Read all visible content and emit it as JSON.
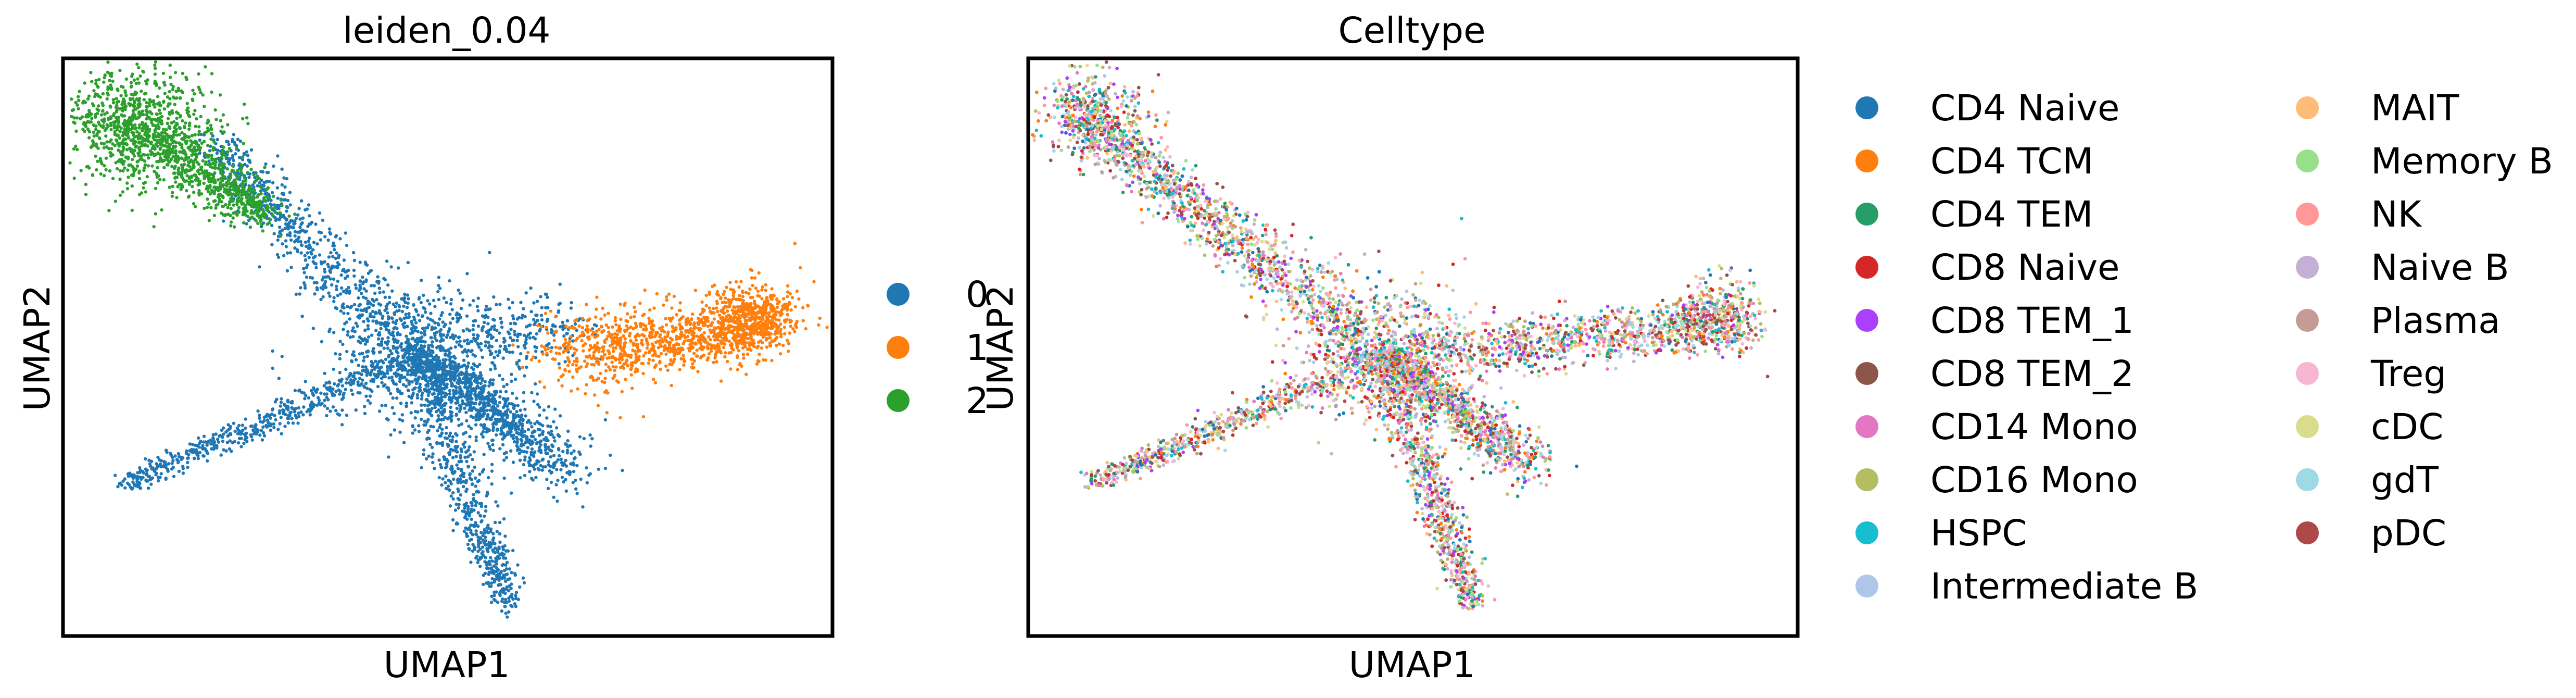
{
  "chart_data": [
    {
      "type": "scatter",
      "title": "leiden_0.04",
      "xlabel": "UMAP1",
      "ylabel": "UMAP2",
      "ticks": "none",
      "legend": {
        "placement": "right",
        "entries": [
          {
            "label": "0",
            "color": "#1f77b4"
          },
          {
            "label": "1",
            "color": "#ff7f0e"
          },
          {
            "label": "2",
            "color": "#2ca02c"
          }
        ]
      },
      "clusters": [
        {
          "name": "0",
          "color": "#1f77b4",
          "shape": [
            {
              "from": [
                6.6,
                2.2
              ],
              "to": [
                4.6,
                3.7
              ],
              "weight": 2.2,
              "spread": 0.25
            },
            {
              "from": [
                4.6,
                3.7
              ],
              "to": [
                1.9,
                6.5
              ],
              "weight": 1.6,
              "spread": 0.3
            },
            {
              "from": [
                4.6,
                3.7
              ],
              "to": [
                0.8,
                2.0
              ],
              "weight": 1.2,
              "spread": 0.16
            },
            {
              "from": [
                4.6,
                3.7
              ],
              "to": [
                5.8,
                0.4
              ],
              "weight": 1.4,
              "spread": 0.2
            },
            {
              "from": [
                4.6,
                3.7
              ],
              "to": [
                6.6,
                4.1
              ],
              "weight": 0.7,
              "spread": 0.45
            }
          ],
          "hubs": [
            {
              "at": [
                4.6,
                3.7
              ],
              "radius": 0.6,
              "weight": 1.3
            }
          ]
        },
        {
          "name": "1",
          "color": "#ff7f0e",
          "shape": [
            {
              "from": [
                6.4,
                3.7
              ],
              "to": [
                9.2,
                4.1
              ],
              "weight": 1.5,
              "spread": 0.35
            }
          ],
          "hubs": [
            {
              "at": [
                9.0,
                4.2
              ],
              "radius": 0.3,
              "weight": 0.6
            }
          ]
        },
        {
          "name": "2",
          "color": "#2ca02c",
          "shape": [
            {
              "from": [
                0.6,
                6.9
              ],
              "to": [
                2.6,
                5.6
              ],
              "weight": 1.2,
              "spread": 0.3
            }
          ],
          "hubs": [
            {
              "at": [
                1.0,
                6.7
              ],
              "radius": 0.5,
              "weight": 0.8
            }
          ]
        }
      ],
      "xlim": [
        0,
        10
      ],
      "ylim": [
        0,
        7.6
      ]
    },
    {
      "type": "scatter",
      "title": "Celltype",
      "xlabel": "UMAP1",
      "ylabel": "UMAP2",
      "ticks": "none",
      "legend": {
        "placement": "right",
        "columns": 2,
        "entries": [
          {
            "label": "CD4 Naive",
            "color": "#1f77b4"
          },
          {
            "label": "CD4 TCM",
            "color": "#ff7f0e"
          },
          {
            "label": "CD4 TEM",
            "color": "#279e68"
          },
          {
            "label": "CD8 Naive",
            "color": "#d62728"
          },
          {
            "label": "CD8 TEM_1",
            "color": "#aa40fc"
          },
          {
            "label": "CD8 TEM_2",
            "color": "#8c564b"
          },
          {
            "label": "CD14 Mono",
            "color": "#e377c2"
          },
          {
            "label": "CD16 Mono",
            "color": "#b5bd61"
          },
          {
            "label": "HSPC",
            "color": "#17becf"
          },
          {
            "label": "Intermediate B",
            "color": "#aec7e8"
          },
          {
            "label": "MAIT",
            "color": "#ffbb78"
          },
          {
            "label": "Memory B",
            "color": "#98df8a"
          },
          {
            "label": "NK",
            "color": "#ff9896"
          },
          {
            "label": "Naive B",
            "color": "#c5b0d5"
          },
          {
            "label": "Plasma",
            "color": "#c49c94"
          },
          {
            "label": "Treg",
            "color": "#f7b6d2"
          },
          {
            "label": "cDC",
            "color": "#dbdb8d"
          },
          {
            "label": "gdT",
            "color": "#9edae5"
          },
          {
            "label": "pDC",
            "color": "#ad494a"
          }
        ]
      },
      "shape": [
        {
          "from": [
            6.6,
            2.2
          ],
          "to": [
            4.6,
            3.7
          ],
          "weight": 1.6,
          "spread": 0.22
        },
        {
          "from": [
            4.6,
            3.7
          ],
          "to": [
            0.6,
            6.9
          ],
          "weight": 2.0,
          "spread": 0.28
        },
        {
          "from": [
            4.6,
            3.7
          ],
          "to": [
            0.8,
            2.0
          ],
          "weight": 1.0,
          "spread": 0.15
        },
        {
          "from": [
            4.6,
            3.7
          ],
          "to": [
            5.8,
            0.4
          ],
          "weight": 1.2,
          "spread": 0.18
        },
        {
          "from": [
            4.6,
            3.7
          ],
          "to": [
            9.2,
            4.1
          ],
          "weight": 1.7,
          "spread": 0.3
        }
      ],
      "hubs": [
        {
          "at": [
            4.6,
            3.7
          ],
          "radius": 0.6,
          "weight": 1.0
        },
        {
          "at": [
            0.9,
            6.8
          ],
          "radius": 0.4,
          "weight": 0.6
        },
        {
          "at": [
            9.0,
            4.2
          ],
          "radius": 0.3,
          "weight": 0.5
        }
      ],
      "xlim": [
        0,
        10
      ],
      "ylim": [
        0,
        7.6
      ]
    }
  ]
}
